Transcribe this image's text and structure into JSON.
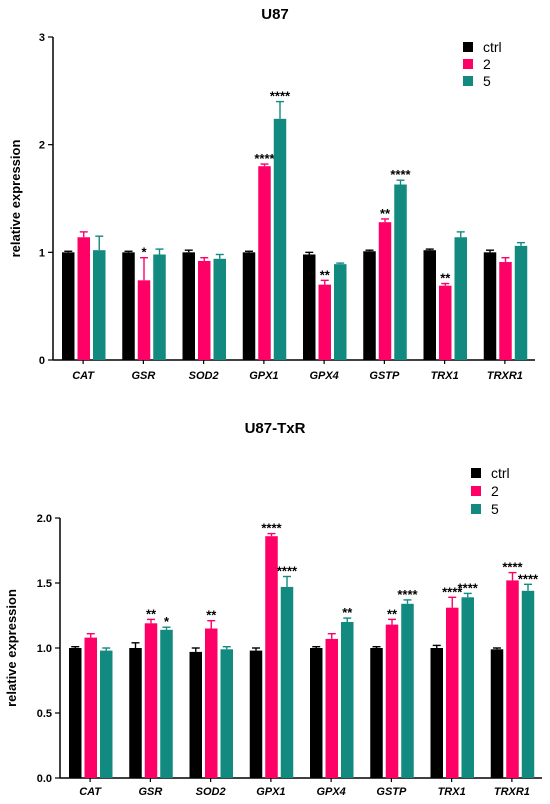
{
  "colors": {
    "ctrl": "#000000",
    "2": "#ff0066",
    "5": "#128a80"
  },
  "chart_data": [
    {
      "type": "bar",
      "title": "U87",
      "ylabel": "relative expression",
      "xlabel": "",
      "ylim": [
        0,
        3
      ],
      "yticks": [
        "0",
        "1",
        "2",
        "3"
      ],
      "grid": false,
      "legend_position": "top-right",
      "categories": [
        "CAT",
        "GSR",
        "SOD2",
        "GPX1",
        "GPX4",
        "GSTP",
        "TRX1",
        "TRXR1"
      ],
      "series": [
        {
          "name": "ctrl",
          "values": [
            1.0,
            1.0,
            1.0,
            1.0,
            0.98,
            1.01,
            1.02,
            1.0
          ],
          "errors": [
            0.01,
            0.01,
            0.02,
            0.01,
            0.02,
            0.01,
            0.01,
            0.02
          ],
          "stars": [
            "",
            "",
            "",
            "",
            "",
            "",
            "",
            ""
          ]
        },
        {
          "name": "2",
          "values": [
            1.14,
            0.74,
            0.92,
            1.8,
            0.7,
            1.28,
            0.69,
            0.91
          ],
          "errors": [
            0.05,
            0.21,
            0.03,
            0.02,
            0.04,
            0.03,
            0.02,
            0.04
          ],
          "stars": [
            "",
            "*",
            "",
            "****",
            "**",
            "**",
            "**",
            ""
          ]
        },
        {
          "name": "5",
          "values": [
            1.02,
            0.98,
            0.94,
            2.24,
            0.89,
            1.63,
            1.14,
            1.06
          ],
          "errors": [
            0.13,
            0.05,
            0.04,
            0.16,
            0.01,
            0.04,
            0.05,
            0.03
          ],
          "stars": [
            "",
            "",
            "",
            "****",
            "",
            "****",
            "",
            ""
          ]
        }
      ]
    },
    {
      "type": "bar",
      "title": "U87-TxR",
      "ylabel": "relative expression",
      "xlabel": "",
      "ylim": [
        0,
        2
      ],
      "yticks": [
        "0.0",
        "0.5",
        "1.0",
        "1.5",
        "2.0"
      ],
      "grid": false,
      "legend_position": "top-right",
      "categories": [
        "CAT",
        "GSR",
        "SOD2",
        "GPX1",
        "GPX4",
        "GSTP",
        "TRX1",
        "TRXR1"
      ],
      "series": [
        {
          "name": "ctrl",
          "values": [
            1.0,
            1.0,
            0.97,
            0.98,
            1.0,
            1.0,
            1.0,
            0.99
          ],
          "errors": [
            0.01,
            0.04,
            0.03,
            0.02,
            0.01,
            0.01,
            0.02,
            0.01
          ],
          "stars": [
            "",
            "",
            "",
            "",
            "",
            "",
            "",
            ""
          ]
        },
        {
          "name": "2",
          "values": [
            1.08,
            1.19,
            1.15,
            1.86,
            1.07,
            1.18,
            1.31,
            1.52
          ],
          "errors": [
            0.03,
            0.03,
            0.06,
            0.02,
            0.04,
            0.04,
            0.08,
            0.06
          ],
          "stars": [
            "",
            "**",
            "**",
            "****",
            "",
            "**",
            "****",
            "****"
          ]
        },
        {
          "name": "5",
          "values": [
            0.98,
            1.14,
            0.99,
            1.47,
            1.2,
            1.34,
            1.39,
            1.44
          ],
          "errors": [
            0.02,
            0.02,
            0.02,
            0.08,
            0.03,
            0.03,
            0.03,
            0.05
          ],
          "stars": [
            "",
            "*",
            "",
            "****",
            "**",
            "****",
            "****",
            "****"
          ]
        }
      ]
    }
  ]
}
